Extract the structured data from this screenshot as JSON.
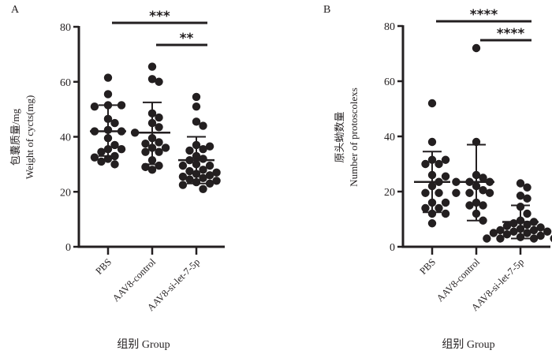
{
  "chart_data": [
    {
      "type": "scatter",
      "panel": "A",
      "title": "",
      "xlabel": "组别 Group",
      "ylabel": "包囊质量/mg",
      "ylabel2": "Weight of cycts(mg)",
      "ylim": [
        0,
        80
      ],
      "yticks": [
        "0",
        "20",
        "40",
        "60",
        "80"
      ],
      "categories": [
        "PBS",
        "AAV8-control",
        "AAV8-si-let-7-5p"
      ],
      "series": [
        {
          "name": "PBS",
          "mean": 42,
          "sd_upper": 51.5,
          "sd_lower": 33,
          "values": [
            61.5,
            55.5,
            51.5,
            51.5,
            51,
            46.5,
            45,
            42.5,
            42,
            42,
            41.5,
            39.5,
            37,
            35.5,
            35.5,
            34.5,
            33,
            32.5,
            32,
            31,
            30
          ]
        },
        {
          "name": "AAV8-control",
          "mean": 41.5,
          "sd_upper": 52.5,
          "sd_lower": 30,
          "values": [
            65.5,
            61,
            60,
            48.5,
            47,
            45,
            43.5,
            39.5,
            38,
            37.5,
            36,
            36,
            34.5,
            34.5,
            31.5,
            29.5,
            29,
            28
          ]
        },
        {
          "name": "AAV8-si-let-7-5p",
          "mean": 31.5,
          "sd_upper": 40,
          "sd_lower": 23,
          "values": [
            54.5,
            51,
            45.5,
            44,
            37,
            36.5,
            35.5,
            35,
            33,
            32,
            31.5,
            30,
            29.5,
            29.5,
            28,
            27.5,
            27,
            26.5,
            26,
            25.5,
            25,
            24.5,
            24,
            23.5,
            23,
            22.5,
            21
          ]
        }
      ],
      "significance": [
        {
          "from": "PBS",
          "to": "AAV8-si-let-7-5p",
          "label": "***"
        },
        {
          "from": "AAV8-control",
          "to": "AAV8-si-let-7-5p",
          "label": "**"
        }
      ]
    },
    {
      "type": "scatter",
      "panel": "B",
      "title": "",
      "xlabel": "组别 Group",
      "ylabel": "原头蚴数量",
      "ylabel2": "Number of protoscolexs",
      "ylim": [
        0,
        80
      ],
      "yticks": [
        "0",
        "20",
        "40",
        "60",
        "80"
      ],
      "categories": [
        "PBS",
        "AAV8-control",
        "AAV8-si-let-7-5p"
      ],
      "series": [
        {
          "name": "PBS",
          "mean": 23.5,
          "sd_upper": 34.5,
          "sd_lower": 12.5,
          "values": [
            52,
            38,
            31.5,
            31.5,
            30,
            30,
            26,
            25.5,
            23.5,
            22,
            19.5,
            19.5,
            16,
            16,
            14,
            14,
            12,
            12,
            8.5
          ]
        },
        {
          "name": "AAV8-control",
          "mean": 23.5,
          "sd_upper": 37,
          "sd_lower": 9.5,
          "values": [
            72,
            38,
            26,
            25,
            23.5,
            23.5,
            23.5,
            22,
            20.5,
            19.5,
            19.5,
            19.5,
            16,
            15,
            15,
            12,
            9.5
          ]
        },
        {
          "name": "AAV8-si-let-7-5p",
          "mean": 9,
          "sd_upper": 15,
          "sd_lower": 3,
          "values": [
            23,
            21.5,
            18.5,
            17.5,
            14.5,
            12,
            9.5,
            9,
            8.5,
            8,
            7.5,
            7,
            6.5,
            6,
            6,
            5.5,
            5.5,
            5,
            5,
            4.5,
            4,
            3.5,
            3,
            3,
            3,
            3
          ]
        }
      ],
      "significance": [
        {
          "from": "PBS",
          "to": "AAV8-si-let-7-5p",
          "label": "****"
        },
        {
          "from": "AAV8-control",
          "to": "AAV8-si-let-7-5p",
          "label": "****"
        }
      ]
    }
  ],
  "panels": [
    {
      "label": "A"
    },
    {
      "label": "B"
    }
  ],
  "colors": {
    "ink": "#231f20",
    "background": "#ffffff"
  }
}
